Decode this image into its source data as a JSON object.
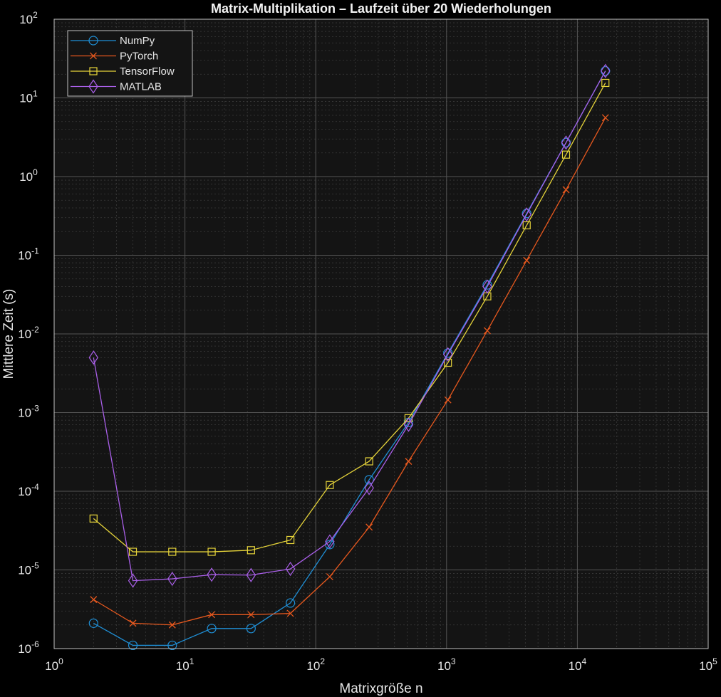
{
  "chart_data": {
    "type": "line",
    "title": "Matrix-Multiplikation – Laufzeit über 20 Wiederholungen",
    "xlabel": "Matrixgröße n",
    "ylabel": "Mittlere Zeit (s)",
    "xscale": "log",
    "yscale": "log",
    "xlim": [
      1,
      100000
    ],
    "ylim": [
      1e-06,
      100
    ],
    "x_ticks": [
      {
        "base": "10",
        "exp": "0"
      },
      {
        "base": "10",
        "exp": "1"
      },
      {
        "base": "10",
        "exp": "2"
      },
      {
        "base": "10",
        "exp": "3"
      },
      {
        "base": "10",
        "exp": "4"
      },
      {
        "base": "10",
        "exp": "5"
      }
    ],
    "y_ticks": [
      {
        "base": "10",
        "exp": "-6"
      },
      {
        "base": "10",
        "exp": "-5"
      },
      {
        "base": "10",
        "exp": "-4"
      },
      {
        "base": "10",
        "exp": "-3"
      },
      {
        "base": "10",
        "exp": "-2"
      },
      {
        "base": "10",
        "exp": "-1"
      },
      {
        "base": "10",
        "exp": "0"
      },
      {
        "base": "10",
        "exp": "1"
      },
      {
        "base": "10",
        "exp": "2"
      }
    ],
    "grid": true,
    "minor_grid": true,
    "legend_position": "top-left",
    "x": [
      2,
      4,
      8,
      16,
      32,
      64,
      128,
      256,
      512,
      1024,
      2048,
      4096,
      8192,
      16384
    ],
    "series": [
      {
        "name": "NumPy",
        "color": "#1f8fd6",
        "marker": "circle",
        "values": [
          2.1e-06,
          1.1e-06,
          1.1e-06,
          1.8e-06,
          1.8e-06,
          3.8e-06,
          2.1e-05,
          0.00014,
          0.00075,
          0.0057,
          0.042,
          0.34,
          2.7,
          22
        ]
      },
      {
        "name": "PyTorch",
        "color": "#e6581e",
        "marker": "x",
        "values": [
          4.2e-06,
          2.1e-06,
          2e-06,
          2.7e-06,
          2.7e-06,
          2.8e-06,
          8.2e-06,
          3.5e-05,
          0.00024,
          0.00145,
          0.011,
          0.086,
          0.68,
          5.6
        ]
      },
      {
        "name": "TensorFlow",
        "color": "#e6d43a",
        "marker": "square",
        "values": [
          4.5e-05,
          1.7e-05,
          1.7e-05,
          1.7e-05,
          1.78e-05,
          2.4e-05,
          0.00012,
          0.00024,
          0.00085,
          0.0043,
          0.03,
          0.24,
          1.9,
          15.5
        ]
      },
      {
        "name": "MATLAB",
        "color": "#a95fe8",
        "marker": "diamond",
        "values": [
          0.005,
          7.3e-06,
          7.7e-06,
          8.7e-06,
          8.6e-06,
          1.03e-05,
          2.3e-05,
          0.00011,
          0.0007,
          0.0055,
          0.04,
          0.33,
          2.7,
          22
        ]
      }
    ]
  }
}
